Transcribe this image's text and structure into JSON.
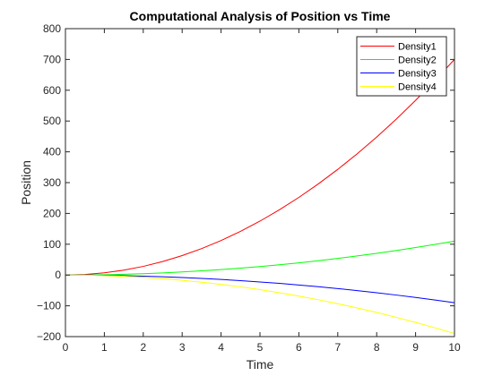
{
  "chart_data": {
    "type": "line",
    "title": "Computational Analysis of Position vs Time",
    "xlabel": "Time",
    "ylabel": "Position",
    "xlim": [
      0,
      10
    ],
    "ylim": [
      -200,
      800
    ],
    "xticks": [
      0,
      1,
      2,
      3,
      4,
      5,
      6,
      7,
      8,
      9,
      10
    ],
    "yticks": [
      -200,
      -100,
      0,
      100,
      200,
      300,
      400,
      500,
      600,
      700,
      800
    ],
    "grid": false,
    "legend": {
      "position": "top-right"
    },
    "x": [
      0,
      0.5,
      1,
      1.5,
      2,
      2.5,
      3,
      3.5,
      4,
      4.5,
      5,
      5.5,
      6,
      6.5,
      7,
      7.5,
      8,
      8.5,
      9,
      9.5,
      10
    ],
    "series": [
      {
        "name": "Density1",
        "color": "#ff0000",
        "values": [
          0,
          1.8,
          7,
          15.8,
          28,
          43.8,
          63,
          85.8,
          112,
          141.8,
          175,
          211.8,
          252,
          295.8,
          343,
          393.8,
          448,
          505.8,
          567,
          631.8,
          700
        ]
      },
      {
        "name": "Density2",
        "color": "#00ff00",
        "values": [
          0,
          0.3,
          1.1,
          2.5,
          4.4,
          6.9,
          9.9,
          13.5,
          17.6,
          22.3,
          27.5,
          33.3,
          39.6,
          46.5,
          53.9,
          61.9,
          70.4,
          79.5,
          89.1,
          99.3,
          110
        ]
      },
      {
        "name": "Density3",
        "color": "#0000ff",
        "values": [
          0,
          -0.2,
          -0.9,
          -2,
          -3.6,
          -5.6,
          -8.1,
          -11,
          -14.4,
          -18.2,
          -22.5,
          -27.2,
          -32.4,
          -38,
          -44.1,
          -50.6,
          -57.6,
          -65,
          -72.9,
          -81.2,
          -90
        ]
      },
      {
        "name": "Density4",
        "color": "#ffff00",
        "values": [
          0,
          -0.5,
          -1.9,
          -4.3,
          -7.6,
          -11.9,
          -17.1,
          -23.3,
          -30.4,
          -38.5,
          -47.5,
          -57.5,
          -68.4,
          -80.3,
          -93.1,
          -106.9,
          -121.6,
          -137.3,
          -153.9,
          -171.5,
          -190
        ]
      }
    ]
  }
}
